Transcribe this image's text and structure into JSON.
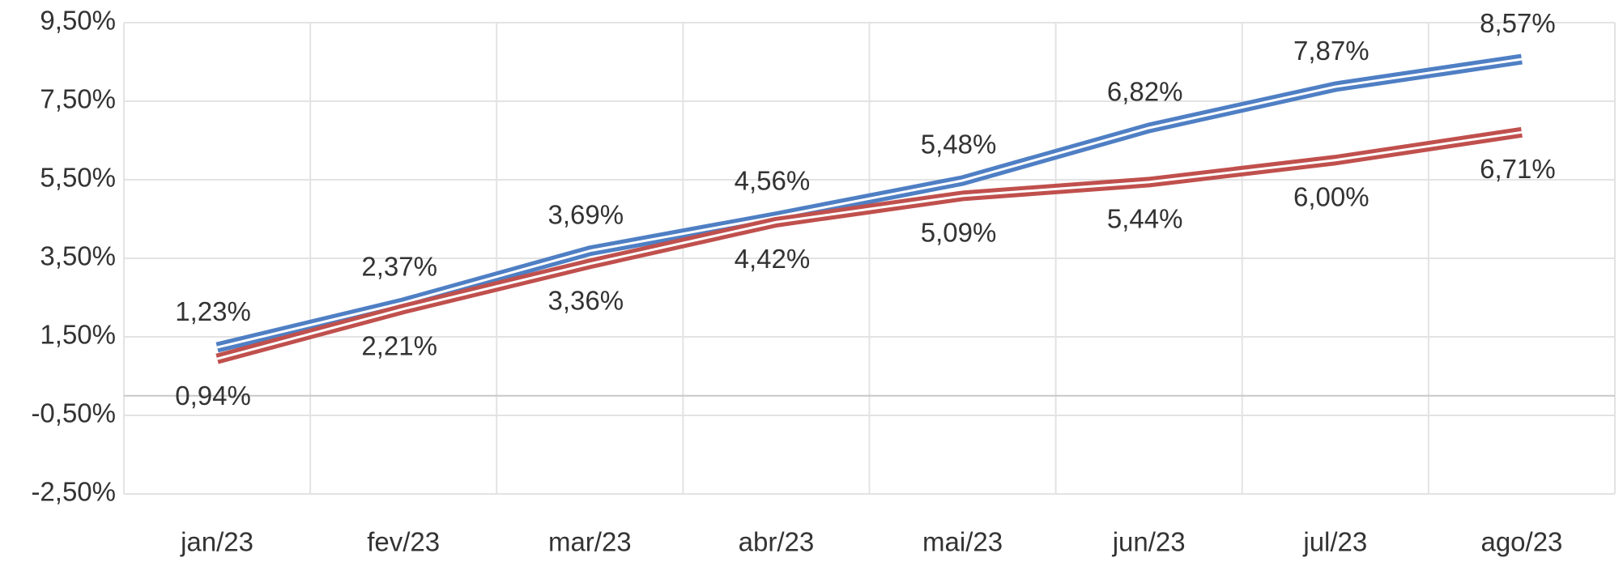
{
  "chart_data": {
    "type": "line",
    "categories": [
      "jan/23",
      "fev/23",
      "mar/23",
      "abr/23",
      "mai/23",
      "jun/23",
      "jul/23",
      "ago/23"
    ],
    "series": [
      {
        "color": "#4f7fc4",
        "values": [
          1.23,
          2.37,
          3.69,
          4.56,
          5.48,
          6.82,
          7.87,
          8.57
        ],
        "value_labels": [
          "1,23%",
          "2,37%",
          "3,69%",
          "4,56%",
          "5,48%",
          "6,82%",
          "7,87%",
          "8,57%"
        ]
      },
      {
        "color": "#c0504d",
        "values": [
          0.94,
          2.21,
          3.36,
          4.42,
          5.09,
          5.44,
          6.0,
          6.71
        ],
        "value_labels": [
          "0,94%",
          "2,21%",
          "3,36%",
          "4,42%",
          "5,09%",
          "5,44%",
          "6,00%",
          "6,71%"
        ]
      }
    ],
    "ylim": [
      -2.5,
      9.5
    ],
    "yticks": [
      {
        "value": -2.5,
        "label": "-2,50%"
      },
      {
        "value": -0.5,
        "label": "-0,50%"
      },
      {
        "value": 1.5,
        "label": "1,50%"
      },
      {
        "value": 3.5,
        "label": "3,50%"
      },
      {
        "value": 5.5,
        "label": "5,50%"
      },
      {
        "value": 7.5,
        "label": "7,50%"
      },
      {
        "value": 9.5,
        "label": "9,50%"
      }
    ],
    "grid": true
  }
}
